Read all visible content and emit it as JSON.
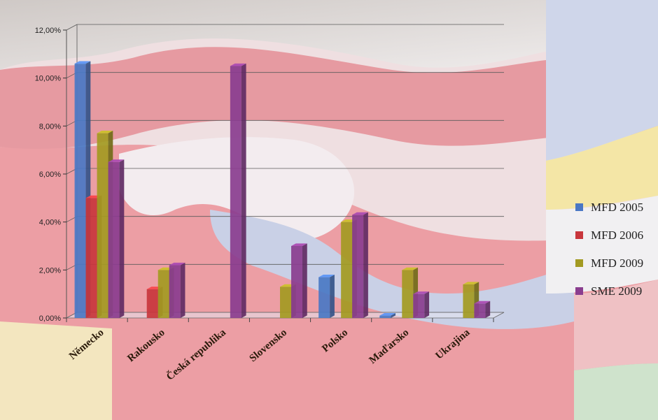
{
  "chart_data": {
    "type": "bar",
    "title": "",
    "xlabel": "",
    "ylabel": "",
    "ylim": [
      0,
      12
    ],
    "yticks": [
      "0,00%",
      "2,00%",
      "4,00%",
      "6,00%",
      "8,00%",
      "10,00%",
      "12,00%"
    ],
    "categories": [
      "Německo",
      "Rakousko",
      "Česká republika",
      "Slovensko",
      "Polsko",
      "Maďarsko",
      "Ukrajina"
    ],
    "series": [
      {
        "name": "MFD 2005",
        "color": "#4a78c4",
        "values": [
          10.6,
          0.0,
          0.0,
          0.0,
          1.7,
          0.1,
          0.0
        ]
      },
      {
        "name": "MFD 2006",
        "color": "#c8363c",
        "values": [
          5.0,
          1.2,
          0.0,
          0.0,
          0.0,
          0.0,
          0.0
        ]
      },
      {
        "name": "MFD 2009",
        "color": "#a39a22",
        "values": [
          7.7,
          2.0,
          0.0,
          1.3,
          4.0,
          2.0,
          1.4
        ]
      },
      {
        "name": "SME 2009",
        "color": "#8a3d8f",
        "values": [
          6.5,
          2.2,
          10.5,
          3.0,
          4.3,
          1.0,
          0.6
        ]
      }
    ],
    "extra_values_note": "",
    "grid": true,
    "legend_position": "right"
  }
}
